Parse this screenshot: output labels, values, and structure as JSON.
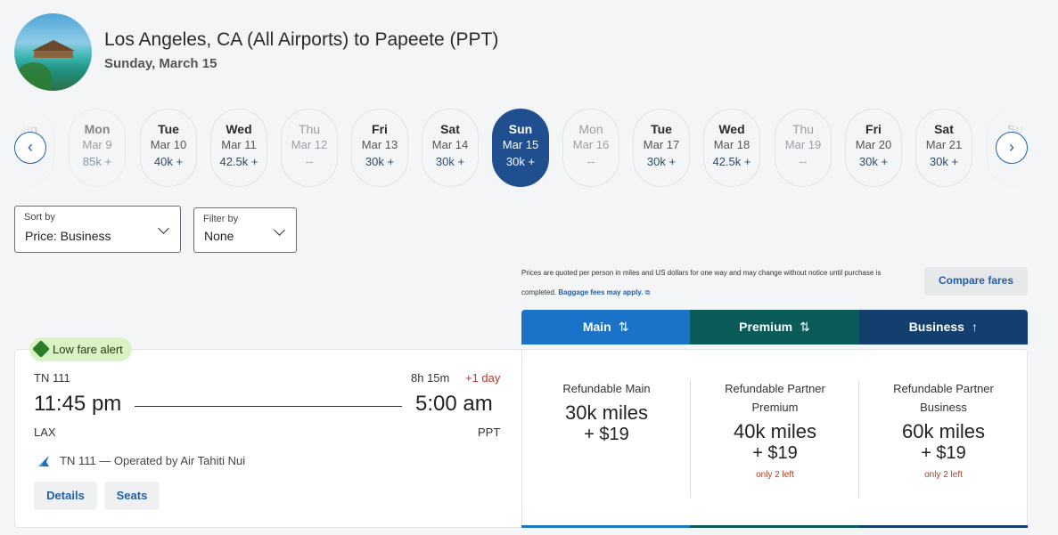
{
  "header": {
    "title": "Los Angeles, CA (All Airports) to Papeete (PPT)",
    "subtitle": "Sunday, March 15"
  },
  "date_strip": {
    "days": [
      {
        "dow": "Sun",
        "date": "",
        "price": "",
        "state": "faded"
      },
      {
        "dow": "Mon",
        "date": "Mar 9",
        "price": "85k +",
        "state": "dim"
      },
      {
        "dow": "Tue",
        "date": "Mar 10",
        "price": "40k +",
        "state": "normal"
      },
      {
        "dow": "Wed",
        "date": "Mar 11",
        "price": "42.5k +",
        "state": "normal"
      },
      {
        "dow": "Thu",
        "date": "Mar 12",
        "price": "--",
        "state": "muted"
      },
      {
        "dow": "Fri",
        "date": "Mar 13",
        "price": "30k +",
        "state": "normal"
      },
      {
        "dow": "Sat",
        "date": "Mar 14",
        "price": "30k +",
        "state": "normal"
      },
      {
        "dow": "Sun",
        "date": "Mar 15",
        "price": "30k +",
        "state": "selected"
      },
      {
        "dow": "Mon",
        "date": "Mar 16",
        "price": "--",
        "state": "muted"
      },
      {
        "dow": "Tue",
        "date": "Mar 17",
        "price": "30k +",
        "state": "normal"
      },
      {
        "dow": "Wed",
        "date": "Mar 18",
        "price": "42.5k +",
        "state": "normal"
      },
      {
        "dow": "Thu",
        "date": "Mar 19",
        "price": "--",
        "state": "muted"
      },
      {
        "dow": "Fri",
        "date": "Mar 20",
        "price": "30k +",
        "state": "normal"
      },
      {
        "dow": "Sat",
        "date": "Mar 21",
        "price": "30k +",
        "state": "normal"
      },
      {
        "dow": "Su",
        "date": "",
        "price": "",
        "state": "faded"
      }
    ],
    "prev_icon": "chevron-left-icon",
    "next_icon": "chevron-right-icon"
  },
  "sort": {
    "label": "Sort by",
    "value": "Price: Business"
  },
  "filter": {
    "label": "Filter by",
    "value": "None"
  },
  "notice": {
    "text": "Prices are quoted per person in miles and US dollars for one way and may change without notice until purchase is completed.",
    "link": "Baggage fees may apply."
  },
  "compare_label": "Compare fares",
  "cabins": [
    {
      "label": "Main",
      "sort_icon": "⇅",
      "color": "#1a73c9"
    },
    {
      "label": "Premium",
      "sort_icon": "⇅",
      "color": "#0b5c58"
    },
    {
      "label": "Business",
      "sort_icon": "↑",
      "color": "#123f6e"
    }
  ],
  "flight": {
    "badge": "Low fare alert",
    "number": "TN 111",
    "duration": "8h 15m",
    "plus_day": "+1 day",
    "depart_time": "11:45 pm",
    "arrive_time": "5:00 am",
    "depart_airport": "LAX",
    "arrive_airport": "PPT",
    "operated_by": "TN 111 — Operated by Air Tahiti Nui",
    "details_label": "Details",
    "seats_label": "Seats"
  },
  "fares": [
    {
      "name": "Refundable Main",
      "miles": "30k miles",
      "fees": "+ $19",
      "left": ""
    },
    {
      "name": "Refundable Partner Premium",
      "miles": "40k miles",
      "fees": "+ $19",
      "left": "only 2 left"
    },
    {
      "name": "Refundable Partner Business",
      "miles": "60k miles",
      "fees": "+ $19",
      "left": "only 2 left"
    }
  ]
}
